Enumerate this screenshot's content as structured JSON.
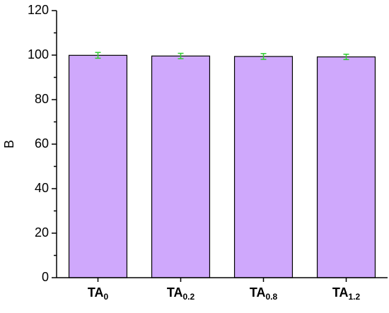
{
  "chart_data": {
    "type": "bar",
    "y_label": "B",
    "categories": [
      {
        "text": "TA",
        "subscript": "0"
      },
      {
        "text": "TA",
        "subscript": "0.2"
      },
      {
        "text": "TA",
        "subscript": "0.8"
      },
      {
        "text": "TA",
        "subscript": "1.2"
      }
    ],
    "values": [
      99.9,
      99.6,
      99.4,
      99.2
    ],
    "errors": [
      1.3,
      1.2,
      1.3,
      1.2
    ],
    "color": "#cfa8fc",
    "error_color": "#33cc33",
    "ylim": [
      0,
      120
    ],
    "yticks": [
      0,
      20,
      40,
      60,
      80,
      100,
      120
    ],
    "grid": false
  }
}
